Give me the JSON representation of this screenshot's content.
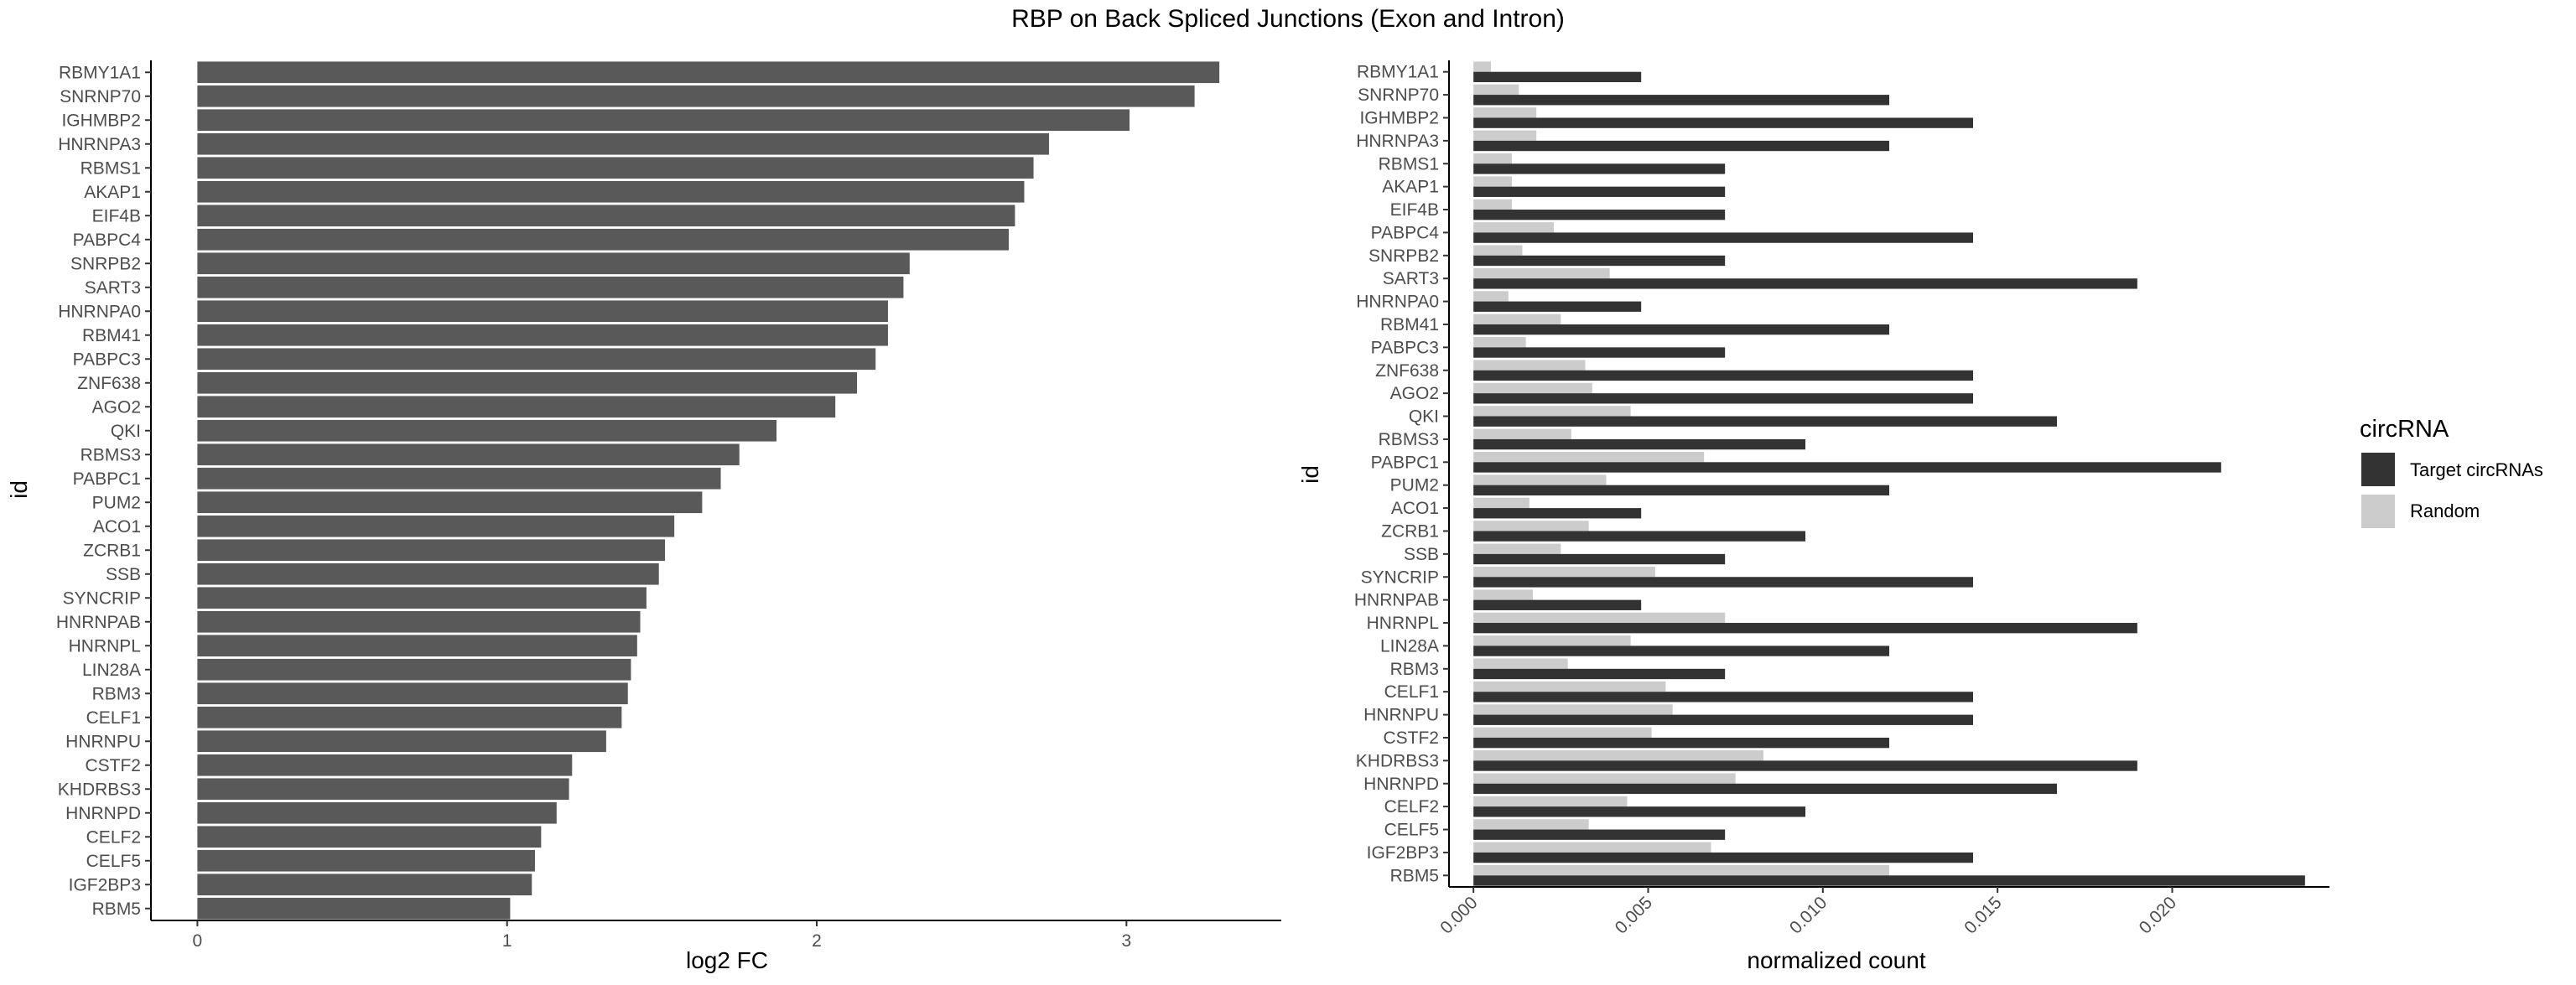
{
  "title": "RBP on Back Spliced Junctions (Exon and Intron)",
  "chart_data": [
    {
      "type": "bar",
      "orientation": "horizontal",
      "xlabel": "log2 FC",
      "ylabel": "id",
      "xlim": [
        -0.15,
        3.5
      ],
      "xticks": [
        0,
        1,
        2,
        3
      ],
      "grid": false,
      "bar_color": "#595959",
      "categories": [
        "RBMY1A1",
        "SNRNP70",
        "IGHMBP2",
        "HNRNPA3",
        "RBMS1",
        "AKAP1",
        "EIF4B",
        "PABPC4",
        "SNRPB2",
        "SART3",
        "HNRNPA0",
        "RBM41",
        "PABPC3",
        "ZNF638",
        "AGO2",
        "QKI",
        "RBMS3",
        "PABPC1",
        "PUM2",
        "ACO1",
        "ZCRB1",
        "SSB",
        "SYNCRIP",
        "HNRNPAB",
        "HNRNPL",
        "LIN28A",
        "RBM3",
        "CELF1",
        "HNRNPU",
        "CSTF2",
        "KHDRBS3",
        "HNRNPD",
        "CELF2",
        "CELF5",
        "IGF2BP3",
        "RBM5"
      ],
      "values": [
        3.3,
        3.22,
        3.01,
        2.75,
        2.7,
        2.67,
        2.64,
        2.62,
        2.3,
        2.28,
        2.23,
        2.23,
        2.19,
        2.13,
        2.06,
        1.87,
        1.75,
        1.69,
        1.63,
        1.54,
        1.51,
        1.49,
        1.45,
        1.43,
        1.42,
        1.4,
        1.39,
        1.37,
        1.32,
        1.21,
        1.2,
        1.16,
        1.11,
        1.09,
        1.08,
        1.01
      ]
    },
    {
      "type": "bar",
      "orientation": "horizontal",
      "grouped": true,
      "xlabel": "normalized count",
      "ylabel": "id",
      "xlim": [
        -0.0007,
        0.0245
      ],
      "xticks": [
        "0.000",
        "0.005",
        "0.010",
        "0.015",
        "0.020"
      ],
      "xtick_values": [
        0,
        0.005,
        0.01,
        0.015,
        0.02
      ],
      "grid": false,
      "legend": {
        "title": "circRNA",
        "position": "right",
        "entries": [
          {
            "name": "Target circRNAs",
            "color": "#333333"
          },
          {
            "name": "Random",
            "color": "#cccccc"
          }
        ]
      },
      "categories": [
        "RBMY1A1",
        "SNRNP70",
        "IGHMBP2",
        "HNRNPA3",
        "RBMS1",
        "AKAP1",
        "EIF4B",
        "PABPC4",
        "SNRPB2",
        "SART3",
        "HNRNPA0",
        "RBM41",
        "PABPC3",
        "ZNF638",
        "AGO2",
        "QKI",
        "RBMS3",
        "PABPC1",
        "PUM2",
        "ACO1",
        "ZCRB1",
        "SSB",
        "SYNCRIP",
        "HNRNPAB",
        "HNRNPL",
        "LIN28A",
        "RBM3",
        "CELF1",
        "HNRNPU",
        "CSTF2",
        "KHDRBS3",
        "HNRNPD",
        "CELF2",
        "CELF5",
        "IGF2BP3",
        "RBM5"
      ],
      "series": [
        {
          "name": "Target circRNAs",
          "values": [
            0.0048,
            0.0119,
            0.0143,
            0.0119,
            0.0072,
            0.0072,
            0.0072,
            0.0143,
            0.0072,
            0.019,
            0.0048,
            0.0119,
            0.0072,
            0.0143,
            0.0143,
            0.0167,
            0.0095,
            0.0214,
            0.0119,
            0.0048,
            0.0095,
            0.0072,
            0.0143,
            0.0048,
            0.019,
            0.0119,
            0.0072,
            0.0143,
            0.0143,
            0.0119,
            0.019,
            0.0167,
            0.0095,
            0.0072,
            0.0143,
            0.0238
          ]
        },
        {
          "name": "Random",
          "values": [
            0.0005,
            0.0013,
            0.0018,
            0.0018,
            0.0011,
            0.0011,
            0.0011,
            0.0023,
            0.0014,
            0.0039,
            0.001,
            0.0025,
            0.0015,
            0.0032,
            0.0034,
            0.0045,
            0.0028,
            0.0066,
            0.0038,
            0.0016,
            0.0033,
            0.0025,
            0.0052,
            0.0017,
            0.0072,
            0.0045,
            0.0027,
            0.0055,
            0.0057,
            0.0051,
            0.0083,
            0.0075,
            0.0044,
            0.0033,
            0.0068,
            0.0119
          ]
        }
      ]
    }
  ]
}
